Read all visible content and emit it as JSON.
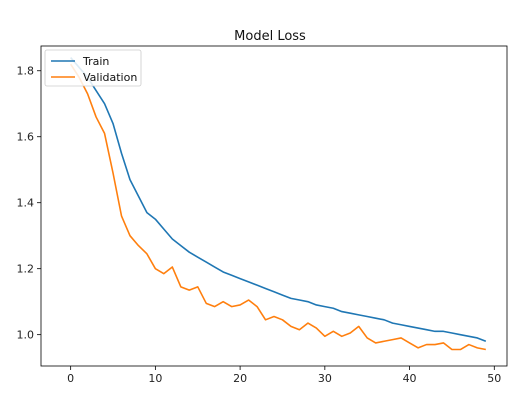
{
  "chart_data": {
    "type": "line",
    "title": "Model Loss",
    "xlabel": "",
    "ylabel": "",
    "xlim": [
      -3.5,
      51.5
    ],
    "ylim": [
      0.905,
      1.875
    ],
    "xticks": [
      0,
      10,
      20,
      30,
      40,
      50
    ],
    "yticks": [
      1.0,
      1.2,
      1.4,
      1.6,
      1.8
    ],
    "ytick_labels": [
      "1.0",
      "1.2",
      "1.4",
      "1.6",
      "1.8"
    ],
    "grid": false,
    "legend": "top-left",
    "series": [
      {
        "name": "Train",
        "color": "#1f77b4",
        "x": [
          0,
          1,
          2,
          3,
          4,
          5,
          6,
          7,
          8,
          9,
          10,
          11,
          12,
          13,
          14,
          15,
          16,
          17,
          18,
          19,
          20,
          21,
          22,
          23,
          24,
          25,
          26,
          27,
          28,
          29,
          30,
          31,
          32,
          33,
          34,
          35,
          36,
          37,
          38,
          39,
          40,
          41,
          42,
          43,
          44,
          45,
          46,
          47,
          48,
          49
        ],
        "values": [
          1.84,
          1.81,
          1.78,
          1.74,
          1.7,
          1.64,
          1.55,
          1.47,
          1.42,
          1.37,
          1.35,
          1.32,
          1.29,
          1.27,
          1.25,
          1.235,
          1.22,
          1.205,
          1.19,
          1.18,
          1.17,
          1.16,
          1.15,
          1.14,
          1.13,
          1.12,
          1.11,
          1.105,
          1.1,
          1.09,
          1.085,
          1.08,
          1.07,
          1.065,
          1.06,
          1.055,
          1.05,
          1.045,
          1.035,
          1.03,
          1.025,
          1.02,
          1.015,
          1.01,
          1.01,
          1.005,
          1.0,
          0.995,
          0.99,
          0.98
        ]
      },
      {
        "name": "Validation",
        "color": "#ff7f0e",
        "x": [
          0,
          1,
          2,
          3,
          4,
          5,
          6,
          7,
          8,
          9,
          10,
          11,
          12,
          13,
          14,
          15,
          16,
          17,
          18,
          19,
          20,
          21,
          22,
          23,
          24,
          25,
          26,
          27,
          28,
          29,
          30,
          31,
          32,
          33,
          34,
          35,
          36,
          37,
          38,
          39,
          40,
          41,
          42,
          43,
          44,
          45,
          46,
          47,
          48,
          49
        ],
        "values": [
          1.82,
          1.78,
          1.73,
          1.66,
          1.61,
          1.49,
          1.36,
          1.3,
          1.27,
          1.245,
          1.2,
          1.185,
          1.205,
          1.145,
          1.135,
          1.145,
          1.095,
          1.085,
          1.1,
          1.085,
          1.09,
          1.105,
          1.085,
          1.045,
          1.055,
          1.045,
          1.025,
          1.015,
          1.035,
          1.02,
          0.995,
          1.01,
          0.995,
          1.005,
          1.025,
          0.99,
          0.975,
          0.98,
          0.985,
          0.99,
          0.975,
          0.96,
          0.97,
          0.97,
          0.975,
          0.955,
          0.955,
          0.97,
          0.96,
          0.955
        ]
      }
    ]
  }
}
